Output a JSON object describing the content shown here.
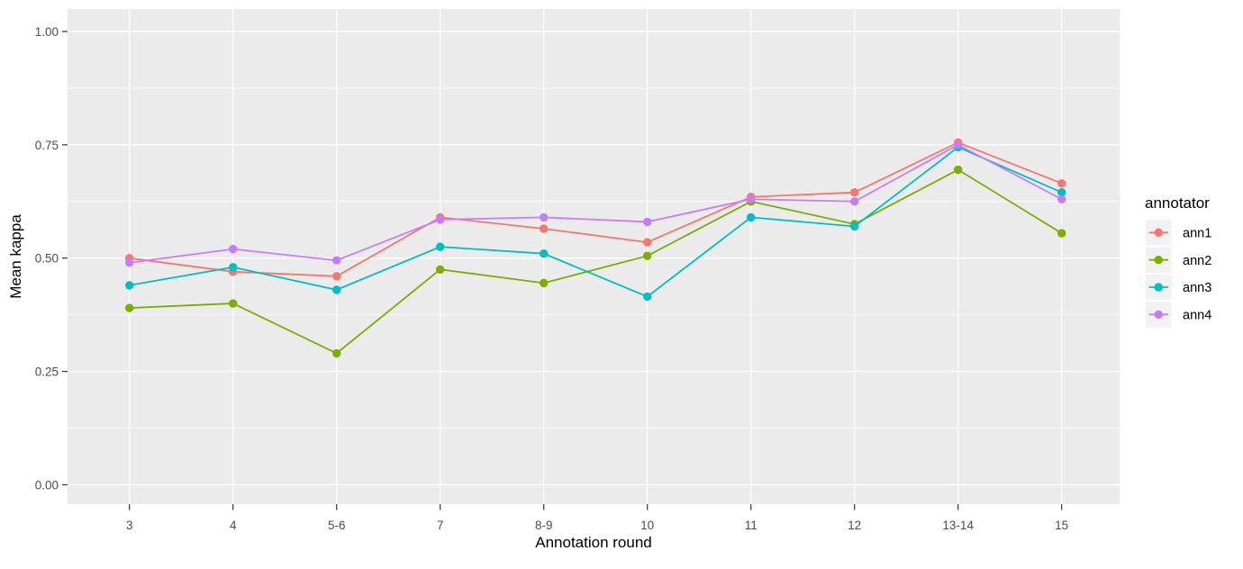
{
  "chart_data": {
    "type": "line",
    "title": "",
    "xlabel": "Annotation round",
    "ylabel": "Mean kappa",
    "legend_title": "annotator",
    "legend_position": "right",
    "grid": true,
    "categories": [
      "3",
      "4",
      "5-6",
      "7",
      "8-9",
      "10",
      "11",
      "12",
      "13-14",
      "15"
    ],
    "ylim": [
      0,
      1
    ],
    "y_major_ticks": [
      0,
      0.25,
      0.5,
      0.75,
      1
    ],
    "y_tick_labels": [
      "0.00",
      "0.25",
      "0.50",
      "0.75",
      "1.00"
    ],
    "y_minor_ticks": [
      0.125,
      0.375,
      0.625,
      0.875
    ],
    "series": [
      {
        "name": "ann1",
        "color": "#F8766D",
        "values": [
          0.5,
          0.47,
          0.46,
          0.59,
          0.565,
          0.535,
          0.635,
          0.645,
          0.755,
          0.665
        ]
      },
      {
        "name": "ann2",
        "color": "#7CAE00",
        "values": [
          0.39,
          0.4,
          0.29,
          0.475,
          0.445,
          0.505,
          0.625,
          0.575,
          0.695,
          0.555
        ]
      },
      {
        "name": "ann3",
        "color": "#00BFC4",
        "values": [
          0.44,
          0.48,
          0.43,
          0.525,
          0.51,
          0.415,
          0.59,
          0.57,
          0.745,
          0.645
        ]
      },
      {
        "name": "ann4",
        "color": "#C77CFF",
        "values": [
          0.49,
          0.52,
          0.495,
          0.585,
          0.59,
          0.58,
          0.63,
          0.625,
          0.75,
          0.63
        ]
      }
    ],
    "colors": {
      "background": "#FFFFFF",
      "panel_bg": "#EBEBEB",
      "grid": "#FFFFFF",
      "tick_mark": "#333333",
      "tick_label": "#4D4D4D",
      "axis_title": "#000000",
      "legend_key_bg": "#F2F2F2"
    }
  }
}
